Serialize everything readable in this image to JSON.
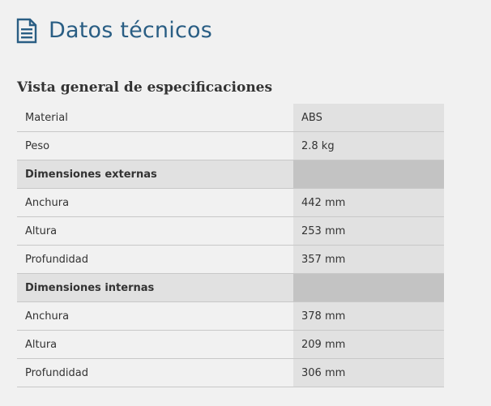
{
  "header": {
    "icon": "document-icon",
    "title": "Datos técnicos",
    "accent_color": "#2a5e84"
  },
  "section": {
    "title": "Vista general de especificaciones"
  },
  "specs": {
    "material": {
      "label": "Material",
      "value": "ABS"
    },
    "peso": {
      "label": "Peso",
      "value": "2.8 kg"
    },
    "externas": {
      "label": "Dimensiones externas",
      "anchura": {
        "label": "Anchura",
        "value": "442 mm"
      },
      "altura": {
        "label": "Altura",
        "value": "253 mm"
      },
      "profundidad": {
        "label": "Profundidad",
        "value": "357 mm"
      }
    },
    "internas": {
      "label": "Dimensiones internas",
      "anchura": {
        "label": "Anchura",
        "value": "378 mm"
      },
      "altura": {
        "label": "Altura",
        "value": "209 mm"
      },
      "profundidad": {
        "label": "Profundidad",
        "value": "306 mm"
      }
    }
  }
}
